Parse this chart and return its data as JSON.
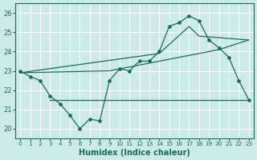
{
  "xlabel": "Humidex (Indice chaleur)",
  "bg_color": "#cceae7",
  "grid_color": "#ffffff",
  "line_color": "#1a6b5a",
  "xlim": [
    -0.5,
    23.5
  ],
  "ylim": [
    19.5,
    26.5
  ],
  "xticks": [
    0,
    1,
    2,
    3,
    4,
    5,
    6,
    7,
    8,
    9,
    10,
    11,
    12,
    13,
    14,
    15,
    16,
    17,
    18,
    19,
    20,
    21,
    22,
    23
  ],
  "yticks": [
    20,
    21,
    22,
    23,
    24,
    25,
    26
  ],
  "line1_x": [
    0,
    1,
    2,
    3,
    4,
    5,
    6,
    7,
    8,
    9,
    10,
    11,
    12,
    13,
    14,
    15,
    16,
    17,
    18,
    19,
    20,
    21,
    22,
    23
  ],
  "line1_y": [
    23.0,
    22.7,
    22.5,
    21.7,
    21.3,
    20.7,
    20.0,
    20.5,
    20.4,
    22.5,
    23.1,
    23.0,
    23.5,
    23.5,
    24.0,
    25.3,
    25.5,
    25.85,
    25.6,
    24.6,
    24.2,
    23.7,
    22.5,
    21.5
  ],
  "line2_x": [
    0,
    14,
    17,
    18,
    23
  ],
  "line2_y": [
    22.9,
    23.9,
    25.3,
    24.8,
    24.6
  ],
  "line3_x": [
    0,
    9,
    10,
    19,
    20,
    23
  ],
  "line3_y": [
    22.9,
    23.0,
    23.1,
    24.0,
    24.1,
    24.6
  ],
  "line4_x": [
    3,
    9,
    20,
    23
  ],
  "line4_y": [
    21.5,
    21.5,
    21.5,
    21.5
  ]
}
